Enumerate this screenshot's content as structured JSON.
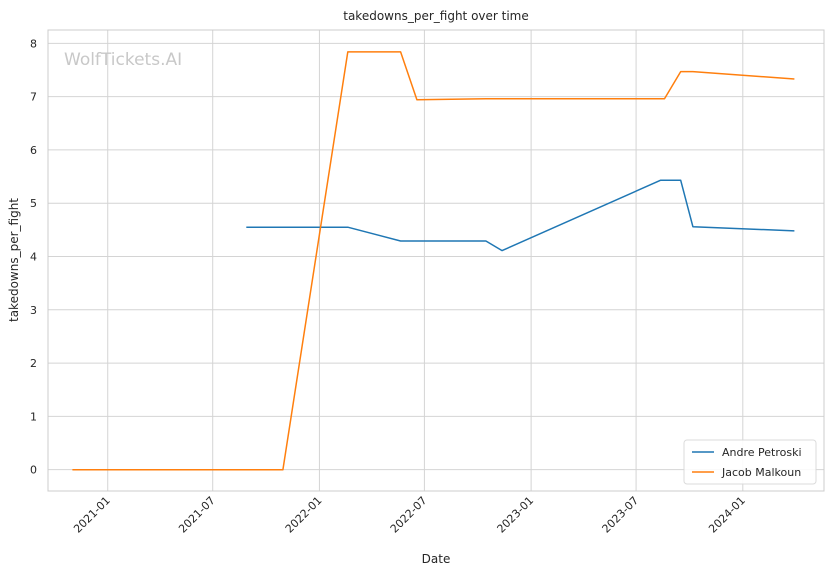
{
  "watermark": "WolfTickets.AI",
  "chart_data": {
    "type": "line",
    "title": "takedowns_per_fight over time",
    "xlabel": "Date",
    "ylabel": "takedowns_per_fight",
    "x_ticks": [
      "2021-01",
      "2021-07",
      "2022-01",
      "2022-07",
      "2023-01",
      "2023-07",
      "2024-01"
    ],
    "y_ticks": [
      0,
      1,
      2,
      3,
      4,
      5,
      6,
      7,
      8
    ],
    "xlim": [
      "2020-09-20",
      "2024-05-20"
    ],
    "ylim": [
      -0.4,
      8.25
    ],
    "grid": true,
    "legend_position": "lower-right",
    "series": [
      {
        "name": "Andre Petroski",
        "color": "#1f77b4",
        "points": [
          {
            "x": "2021-08-28",
            "y": 4.55
          },
          {
            "x": "2022-02-19",
            "y": 4.55
          },
          {
            "x": "2022-05-21",
            "y": 4.29
          },
          {
            "x": "2022-10-15",
            "y": 4.29
          },
          {
            "x": "2022-11-12",
            "y": 4.11
          },
          {
            "x": "2023-08-12",
            "y": 5.43
          },
          {
            "x": "2023-09-16",
            "y": 5.43
          },
          {
            "x": "2023-10-07",
            "y": 4.56
          },
          {
            "x": "2024-03-30",
            "y": 4.48
          }
        ]
      },
      {
        "name": "Jacob Malkoun",
        "color": "#ff7f0e",
        "points": [
          {
            "x": "2020-11-01",
            "y": 0.0
          },
          {
            "x": "2021-10-30",
            "y": 0.0
          },
          {
            "x": "2022-02-19",
            "y": 7.84
          },
          {
            "x": "2022-05-21",
            "y": 7.84
          },
          {
            "x": "2022-06-18",
            "y": 6.94
          },
          {
            "x": "2022-10-15",
            "y": 6.96
          },
          {
            "x": "2023-08-19",
            "y": 6.96
          },
          {
            "x": "2023-09-16",
            "y": 7.47
          },
          {
            "x": "2023-10-07",
            "y": 7.47
          },
          {
            "x": "2024-03-30",
            "y": 7.33
          }
        ]
      }
    ]
  }
}
